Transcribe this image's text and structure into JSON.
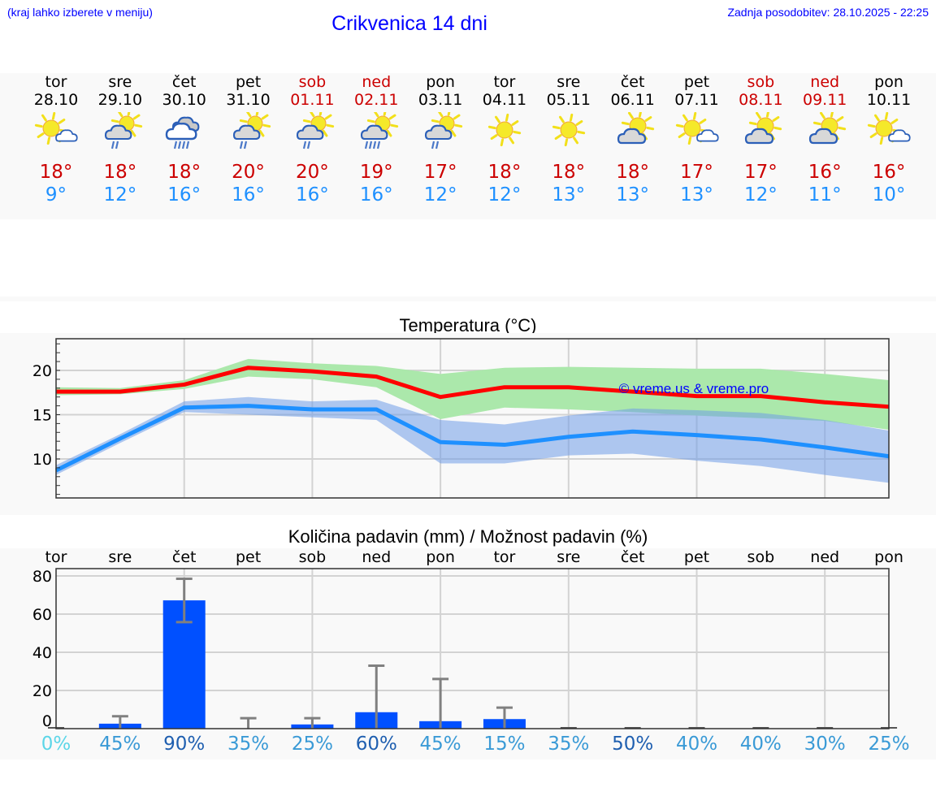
{
  "header": {
    "menu_hint": "(kraj lahko izberete v meniju)",
    "title": "Crikvenica 14 dni",
    "last_update": "Zadnja posodobitev: 28.10.2025 - 22:25"
  },
  "colors": {
    "link_blue": "#0000ff",
    "max_temp": "#cc0000",
    "min_temp": "#1e90ff",
    "max_line": "#ff0000",
    "min_line": "#1e90ff",
    "max_band": "#abe8ab",
    "min_band": "#aec8f2",
    "bar": "#0050ff",
    "errorbar": "#808080"
  },
  "forecast": {
    "days": [
      {
        "name": "tor",
        "date": "28.10",
        "weekend": false,
        "icon": "partly-cloudy-icon",
        "max": "18°",
        "min": "9°"
      },
      {
        "name": "sre",
        "date": "29.10",
        "weekend": false,
        "icon": "sun-cloud-rain-icon",
        "max": "18°",
        "min": "12°"
      },
      {
        "name": "čet",
        "date": "30.10",
        "weekend": false,
        "icon": "heavy-rain-cloud-icon",
        "max": "18°",
        "min": "16°"
      },
      {
        "name": "pet",
        "date": "31.10",
        "weekend": false,
        "icon": "sun-cloud-rain-icon",
        "max": "20°",
        "min": "16°"
      },
      {
        "name": "sob",
        "date": "01.11",
        "weekend": true,
        "icon": "sun-cloud-rain-icon",
        "max": "20°",
        "min": "16°"
      },
      {
        "name": "ned",
        "date": "02.11",
        "weekend": true,
        "icon": "sun-cloud-heavy-rain-icon",
        "max": "19°",
        "min": "16°"
      },
      {
        "name": "pon",
        "date": "03.11",
        "weekend": false,
        "icon": "sun-cloud-rain-icon",
        "max": "17°",
        "min": "12°"
      },
      {
        "name": "tor",
        "date": "04.11",
        "weekend": false,
        "icon": "sun-icon",
        "max": "18°",
        "min": "12°"
      },
      {
        "name": "sre",
        "date": "05.11",
        "weekend": false,
        "icon": "sun-icon",
        "max": "18°",
        "min": "13°"
      },
      {
        "name": "čet",
        "date": "06.11",
        "weekend": false,
        "icon": "sun-behind-cloud-icon",
        "max": "18°",
        "min": "13°"
      },
      {
        "name": "pet",
        "date": "07.11",
        "weekend": false,
        "icon": "partly-cloudy-icon",
        "max": "17°",
        "min": "13°"
      },
      {
        "name": "sob",
        "date": "08.11",
        "weekend": true,
        "icon": "sun-behind-cloud-icon",
        "max": "17°",
        "min": "12°"
      },
      {
        "name": "ned",
        "date": "09.11",
        "weekend": true,
        "icon": "sun-behind-cloud-icon",
        "max": "16°",
        "min": "11°"
      },
      {
        "name": "pon",
        "date": "10.11",
        "weekend": false,
        "icon": "partly-cloudy-icon",
        "max": "16°",
        "min": "10°"
      }
    ]
  },
  "chart_data": [
    {
      "type": "line",
      "title": "Temperatura (°C)",
      "xlabel": "",
      "ylabel": "",
      "x": [
        "28.10",
        "29.10",
        "30.10",
        "31.10",
        "01.11",
        "02.11",
        "03.11",
        "04.11",
        "05.11",
        "06.11",
        "07.11",
        "08.11",
        "09.11",
        "10.11"
      ],
      "ylim": [
        5.5,
        23.5
      ],
      "yticks": [
        10,
        15,
        20
      ],
      "grid": true,
      "watermark": "© vreme.us & vreme.pro",
      "series": [
        {
          "name": "max",
          "color": "#ff0000",
          "values": [
            17.6,
            17.6,
            18.4,
            20.3,
            19.9,
            19.3,
            17.0,
            18.1,
            18.1,
            17.6,
            17.1,
            17.1,
            16.4,
            15.9
          ],
          "band_low": [
            17.2,
            17.3,
            17.9,
            19.3,
            19.0,
            18.1,
            14.5,
            15.8,
            15.6,
            15.3,
            14.9,
            14.6,
            14.3,
            13.3
          ],
          "band_high": [
            18.1,
            18.0,
            18.9,
            21.3,
            20.8,
            20.5,
            19.6,
            20.3,
            20.4,
            20.3,
            20.2,
            20.2,
            19.6,
            18.9
          ]
        },
        {
          "name": "min",
          "color": "#1e90ff",
          "values": [
            8.7,
            12.3,
            15.8,
            16.0,
            15.6,
            15.6,
            11.9,
            11.6,
            12.5,
            13.1,
            12.7,
            12.2,
            11.3,
            10.3
          ],
          "band_low": [
            8.2,
            11.8,
            15.3,
            15.0,
            14.7,
            14.4,
            9.5,
            9.5,
            10.4,
            10.6,
            9.8,
            9.2,
            8.2,
            7.3
          ],
          "band_high": [
            9.3,
            12.8,
            16.5,
            17.0,
            16.5,
            16.7,
            14.4,
            13.9,
            14.9,
            15.7,
            15.5,
            15.2,
            14.4,
            13.2
          ]
        }
      ]
    },
    {
      "type": "bar",
      "title": "Količina padavin (mm) / Možnost padavin (%)",
      "categories": [
        "tor",
        "sre",
        "čet",
        "pet",
        "sob",
        "ned",
        "pon",
        "tor",
        "sre",
        "čet",
        "pet",
        "sob",
        "ned",
        "pon"
      ],
      "values": [
        0,
        2.6,
        67.2,
        0,
        2.2,
        8.6,
        3.9,
        5.0,
        0,
        0,
        0,
        0,
        0,
        0
      ],
      "error_low": [
        0,
        0,
        55.8,
        0,
        0,
        0,
        0,
        0,
        0,
        0,
        0,
        0,
        0,
        0
      ],
      "error_high": [
        0,
        6.5,
        78.5,
        5.5,
        5.5,
        33,
        26,
        11,
        0,
        0,
        0,
        0,
        0,
        0
      ],
      "probability": [
        "0%",
        "45%",
        "90%",
        "35%",
        "25%",
        "60%",
        "45%",
        "15%",
        "35%",
        "50%",
        "40%",
        "40%",
        "30%",
        "25%"
      ],
      "probability_colors": [
        "#5cd6e8",
        "#3a9ad6",
        "#1f5fb0",
        "#3a9ad6",
        "#3a9ad6",
        "#1f5fb0",
        "#3a9ad6",
        "#3a9ad6",
        "#3a9ad6",
        "#1f5fb0",
        "#3a9ad6",
        "#3a9ad6",
        "#3a9ad6",
        "#3a9ad6"
      ],
      "ylim": [
        0,
        84
      ],
      "yticks": [
        0,
        20,
        40,
        60,
        80
      ],
      "xlabel": "",
      "ylabel": "",
      "grid": true
    }
  ]
}
